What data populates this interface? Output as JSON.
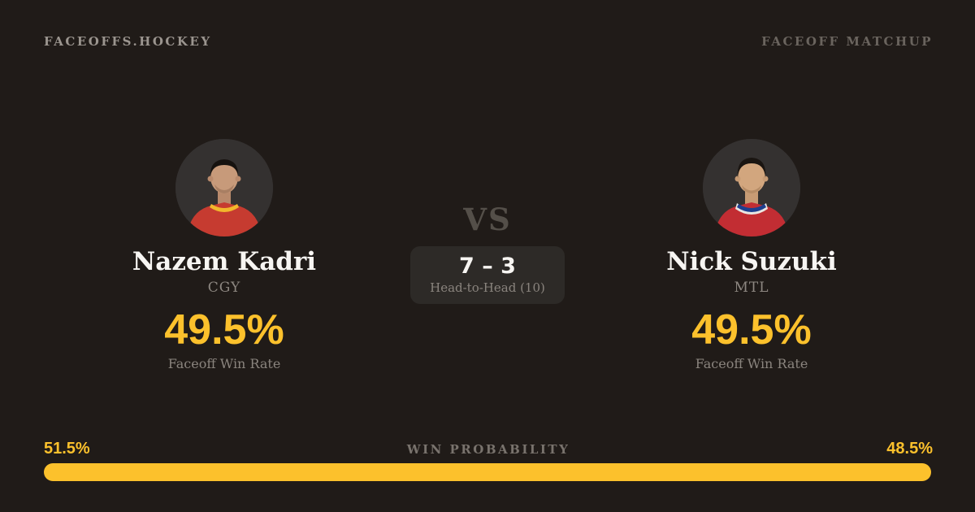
{
  "header": {
    "brand": "FACEOFFS.HOCKEY",
    "page_label": "FACEOFF MATCHUP"
  },
  "players": {
    "left": {
      "name": "Nazem Kadri",
      "team": "CGY",
      "win_rate": "49.5%",
      "win_rate_label": "Faceoff Win Rate",
      "jersey_color": "#c63b30",
      "trim_color": "#f2b72c"
    },
    "right": {
      "name": "Nick Suzuki",
      "team": "MTL",
      "win_rate": "49.5%",
      "win_rate_label": "Faceoff Win Rate",
      "jersey_color": "#c22d33",
      "trim_color": "#1e3f8f"
    }
  },
  "matchup": {
    "vs_label": "VS",
    "head_to_head_score": "7 – 3",
    "head_to_head_label": "Head-to-Head (10)"
  },
  "win_probability": {
    "title": "WIN PROBABILITY",
    "left_pct_label": "51.5%",
    "right_pct_label": "48.5%",
    "left_value": 51.5,
    "right_value": 48.5,
    "bar_color": "#fcc12c"
  },
  "colors": {
    "background": "#201b18",
    "accent_yellow": "#fcc12c",
    "text_white": "#f7f5f2",
    "text_muted": "#8a847e",
    "box_background": "#2d2a27",
    "avatar_background": "#343130"
  }
}
